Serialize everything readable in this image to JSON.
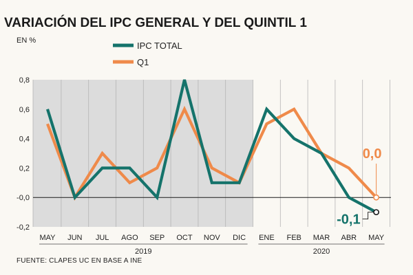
{
  "header": {
    "title": "VARIACIÓN DEL IPC GENERAL Y DEL QUINTIL 1",
    "unit": "EN %"
  },
  "footer": {
    "source": "FUENTE: CLAPES UC EN BASE A INE"
  },
  "colors": {
    "background": "#faf8f3",
    "shade_2019": "#dcdcdc",
    "ipc_total": "#15736b",
    "q1": "#ef8a4a",
    "grid": "#b5b5b5",
    "zero_line": "#1a1a1a"
  },
  "chart_data": {
    "type": "line",
    "title": "VARIACIÓN DEL IPC GENERAL Y DEL QUINTIL 1",
    "ylabel": "EN %",
    "xlabel": "",
    "categories": [
      "MAY",
      "JUN",
      "JUL",
      "AGO",
      "SEP",
      "OCT",
      "NOV",
      "DIC",
      "ENE",
      "FEB",
      "MAR",
      "ABR",
      "MAY"
    ],
    "year_labels": [
      {
        "label": "2019",
        "start_index": 0,
        "end_index": 7
      },
      {
        "label": "2020",
        "start_index": 8,
        "end_index": 12
      }
    ],
    "shaded_year": "2019",
    "ylim": [
      -0.2,
      0.8
    ],
    "y_ticks": [
      {
        "value": 0.8,
        "label": "0,8"
      },
      {
        "value": 0.6,
        "label": "0,6"
      },
      {
        "value": 0.4,
        "label": "0,4"
      },
      {
        "value": 0.2,
        "label": "0,2"
      },
      {
        "value": 0.0,
        "label": "-0,0"
      },
      {
        "value": -0.2,
        "label": "-0,2"
      }
    ],
    "grid": "vertical",
    "legend_position": "top-center",
    "series": [
      {
        "name": "IPC TOTAL",
        "color": "#15736b",
        "values": [
          0.6,
          0.0,
          0.2,
          0.2,
          0.0,
          0.8,
          0.1,
          0.1,
          0.6,
          0.4,
          0.3,
          0.0,
          -0.1
        ],
        "end_label": "-0,1"
      },
      {
        "name": "Q1",
        "color": "#ef8a4a",
        "values": [
          0.5,
          0.0,
          0.3,
          0.1,
          0.2,
          0.6,
          0.2,
          0.1,
          0.5,
          0.6,
          0.3,
          0.2,
          0.0
        ],
        "end_label": "0,0"
      }
    ]
  }
}
